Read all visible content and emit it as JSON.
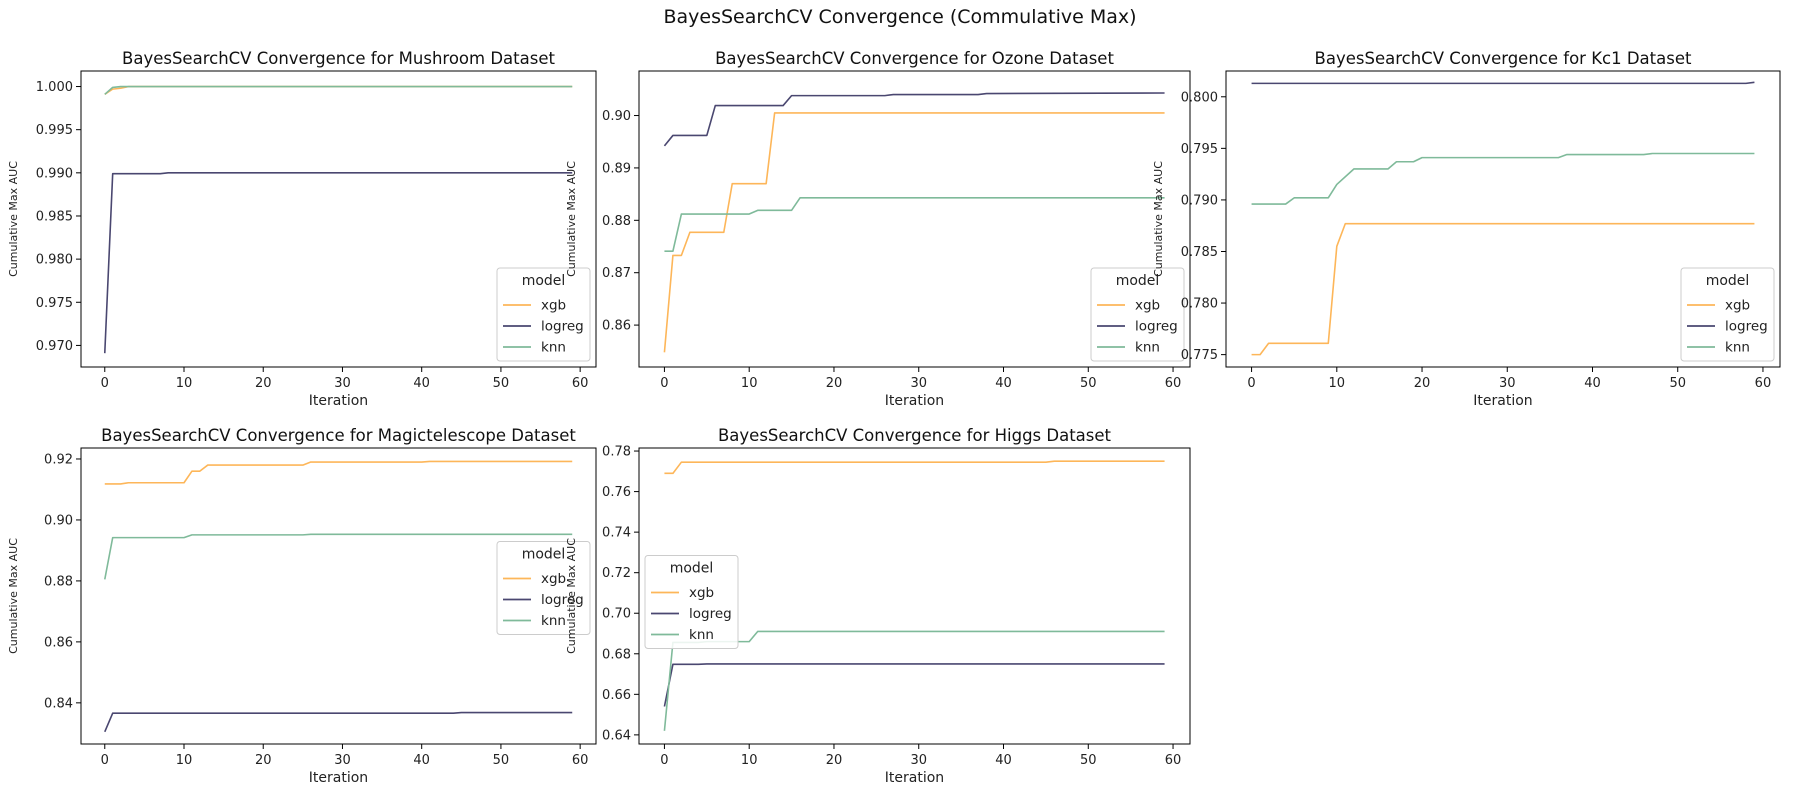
{
  "figure_title": "BayesSearchCV Convergence (Commulative Max)",
  "chart_data": [
    {
      "type": "line",
      "title": "BayesSearchCV Convergence for Mushroom Dataset",
      "xlabel": "Iteration",
      "ylabel": "Cumulative Max AUC",
      "xlim": [
        -3,
        62
      ],
      "ylim": [
        0.9675,
        1.0018
      ],
      "xticks": [
        0,
        10,
        20,
        30,
        40,
        50,
        60
      ],
      "yticks": [
        0.97,
        0.975,
        0.98,
        0.985,
        0.99,
        0.995,
        1.0
      ],
      "ytick_labels": [
        "0.970",
        "0.975",
        "0.980",
        "0.985",
        "0.990",
        "0.995",
        "1.000"
      ],
      "legend": {
        "title": "model",
        "position": "lower-right"
      },
      "series": [
        {
          "name": "xgb",
          "color": "#FDB659",
          "points": [
            [
              0,
              0.9991
            ],
            [
              1,
              0.9997
            ],
            [
              2,
              0.9998
            ],
            [
              3,
              1.0
            ],
            [
              59,
              1.0
            ]
          ]
        },
        {
          "name": "logreg",
          "color": "#4A4770",
          "points": [
            [
              0,
              0.9691
            ],
            [
              1,
              0.9899
            ],
            [
              7,
              0.9899
            ],
            [
              8,
              0.99
            ],
            [
              59,
              0.99
            ]
          ]
        },
        {
          "name": "knn",
          "color": "#7FBA9A",
          "points": [
            [
              0,
              0.9991
            ],
            [
              1,
              0.9999
            ],
            [
              2,
              1.0
            ],
            [
              59,
              1.0
            ]
          ]
        }
      ]
    },
    {
      "type": "line",
      "title": "BayesSearchCV Convergence for Ozone Dataset",
      "xlabel": "Iteration",
      "ylabel": "Cumulative Max AUC",
      "xlim": [
        -3,
        62
      ],
      "ylim": [
        0.852,
        0.9085
      ],
      "xticks": [
        0,
        10,
        20,
        30,
        40,
        50,
        60
      ],
      "yticks": [
        0.86,
        0.87,
        0.88,
        0.89,
        0.9
      ],
      "ytick_labels": [
        "0.86",
        "0.87",
        "0.88",
        "0.89",
        "0.90"
      ],
      "legend": {
        "title": "model",
        "position": "lower-right"
      },
      "series": [
        {
          "name": "xgb",
          "color": "#FDB659",
          "points": [
            [
              0,
              0.8548
            ],
            [
              1,
              0.8733
            ],
            [
              2,
              0.8733
            ],
            [
              3,
              0.8777
            ],
            [
              7,
              0.8777
            ],
            [
              8,
              0.887
            ],
            [
              12,
              0.887
            ],
            [
              13,
              0.9005
            ],
            [
              59,
              0.9005
            ]
          ]
        },
        {
          "name": "logreg",
          "color": "#4A4770",
          "points": [
            [
              0,
              0.8942
            ],
            [
              1,
              0.8962
            ],
            [
              5,
              0.8962
            ],
            [
              6,
              0.9019
            ],
            [
              14,
              0.9019
            ],
            [
              15,
              0.9038
            ],
            [
              26,
              0.9038
            ],
            [
              27,
              0.904
            ],
            [
              37,
              0.904
            ],
            [
              38,
              0.9042
            ],
            [
              59,
              0.9043
            ]
          ]
        },
        {
          "name": "knn",
          "color": "#7FBA9A",
          "points": [
            [
              0,
              0.8741
            ],
            [
              1,
              0.8741
            ],
            [
              2,
              0.8812
            ],
            [
              10,
              0.8812
            ],
            [
              11,
              0.8819
            ],
            [
              15,
              0.8819
            ],
            [
              16,
              0.8843
            ],
            [
              59,
              0.8843
            ]
          ]
        }
      ]
    },
    {
      "type": "line",
      "title": "BayesSearchCV Convergence for Kc1 Dataset",
      "xlabel": "Iteration",
      "ylabel": "Cumulative Max AUC",
      "xlim": [
        -3,
        62
      ],
      "ylim": [
        0.7738,
        0.8025
      ],
      "xticks": [
        0,
        10,
        20,
        30,
        40,
        50,
        60
      ],
      "yticks": [
        0.775,
        0.78,
        0.785,
        0.79,
        0.795,
        0.8
      ],
      "ytick_labels": [
        "0.775",
        "0.780",
        "0.785",
        "0.790",
        "0.795",
        "0.800"
      ],
      "legend": {
        "title": "model",
        "position": "lower-right"
      },
      "series": [
        {
          "name": "xgb",
          "color": "#FDB659",
          "points": [
            [
              0,
              0.775
            ],
            [
              1,
              0.775
            ],
            [
              2,
              0.7761
            ],
            [
              9,
              0.7761
            ],
            [
              10,
              0.7855
            ],
            [
              11,
              0.7877
            ],
            [
              59,
              0.7877
            ]
          ]
        },
        {
          "name": "logreg",
          "color": "#4A4770",
          "points": [
            [
              0,
              0.8013
            ],
            [
              58,
              0.8013
            ],
            [
              59,
              0.8014
            ]
          ]
        },
        {
          "name": "knn",
          "color": "#7FBA9A",
          "points": [
            [
              0,
              0.7896
            ],
            [
              4,
              0.7896
            ],
            [
              5,
              0.7902
            ],
            [
              9,
              0.7902
            ],
            [
              10,
              0.7915
            ],
            [
              12,
              0.793
            ],
            [
              16,
              0.793
            ],
            [
              17,
              0.7937
            ],
            [
              19,
              0.7937
            ],
            [
              20,
              0.7941
            ],
            [
              36,
              0.7941
            ],
            [
              37,
              0.7944
            ],
            [
              46,
              0.7944
            ],
            [
              47,
              0.7945
            ],
            [
              59,
              0.7945
            ]
          ]
        }
      ]
    },
    {
      "type": "line",
      "title": "BayesSearchCV Convergence for Magictelescope Dataset",
      "xlabel": "Iteration",
      "ylabel": "Cumulative Max AUC",
      "xlim": [
        -3,
        62
      ],
      "ylim": [
        0.8265,
        0.9236
      ],
      "xticks": [
        0,
        10,
        20,
        30,
        40,
        50,
        60
      ],
      "yticks": [
        0.84,
        0.86,
        0.88,
        0.9,
        0.92
      ],
      "ytick_labels": [
        "0.84",
        "0.86",
        "0.88",
        "0.90",
        "0.92"
      ],
      "legend": {
        "title": "model",
        "position": "center-right"
      },
      "series": [
        {
          "name": "xgb",
          "color": "#FDB659",
          "points": [
            [
              0,
              0.9118
            ],
            [
              2,
              0.9118
            ],
            [
              3,
              0.9122
            ],
            [
              10,
              0.9122
            ],
            [
              11,
              0.916
            ],
            [
              12,
              0.916
            ],
            [
              13,
              0.918
            ],
            [
              25,
              0.918
            ],
            [
              26,
              0.919
            ],
            [
              40,
              0.919
            ],
            [
              41,
              0.9192
            ],
            [
              59,
              0.9192
            ]
          ]
        },
        {
          "name": "logreg",
          "color": "#4A4770",
          "points": [
            [
              0,
              0.8305
            ],
            [
              1,
              0.8366
            ],
            [
              44,
              0.8366
            ],
            [
              45,
              0.8368
            ],
            [
              59,
              0.8368
            ]
          ]
        },
        {
          "name": "knn",
          "color": "#7FBA9A",
          "points": [
            [
              0,
              0.8805
            ],
            [
              1,
              0.8942
            ],
            [
              10,
              0.8942
            ],
            [
              11,
              0.8951
            ],
            [
              25,
              0.8951
            ],
            [
              26,
              0.8953
            ],
            [
              59,
              0.8953
            ]
          ]
        }
      ]
    },
    {
      "type": "line",
      "title": "BayesSearchCV Convergence for Higgs Dataset",
      "xlabel": "Iteration",
      "ylabel": "Cumulative Max AUC",
      "xlim": [
        -3,
        62
      ],
      "ylim": [
        0.6355,
        0.7815
      ],
      "xticks": [
        0,
        10,
        20,
        30,
        40,
        50,
        60
      ],
      "yticks": [
        0.64,
        0.66,
        0.68,
        0.7,
        0.72,
        0.74,
        0.76,
        0.78
      ],
      "ytick_labels": [
        "0.64",
        "0.66",
        "0.68",
        "0.70",
        "0.72",
        "0.74",
        "0.76",
        "0.78"
      ],
      "legend": {
        "title": "model",
        "position": "center-left"
      },
      "series": [
        {
          "name": "xgb",
          "color": "#FDB659",
          "points": [
            [
              0,
              0.769
            ],
            [
              1,
              0.769
            ],
            [
              2,
              0.7745
            ],
            [
              45,
              0.7745
            ],
            [
              46,
              0.775
            ],
            [
              59,
              0.775
            ]
          ]
        },
        {
          "name": "logreg",
          "color": "#4A4770",
          "points": [
            [
              0,
              0.654
            ],
            [
              1,
              0.6748
            ],
            [
              4,
              0.6748
            ],
            [
              5,
              0.675
            ],
            [
              59,
              0.675
            ]
          ]
        },
        {
          "name": "knn",
          "color": "#7FBA9A",
          "points": [
            [
              0,
              0.642
            ],
            [
              1,
              0.6856
            ],
            [
              4,
              0.6856
            ],
            [
              5,
              0.686
            ],
            [
              10,
              0.686
            ],
            [
              11,
              0.691
            ],
            [
              59,
              0.691
            ]
          ]
        }
      ]
    }
  ]
}
